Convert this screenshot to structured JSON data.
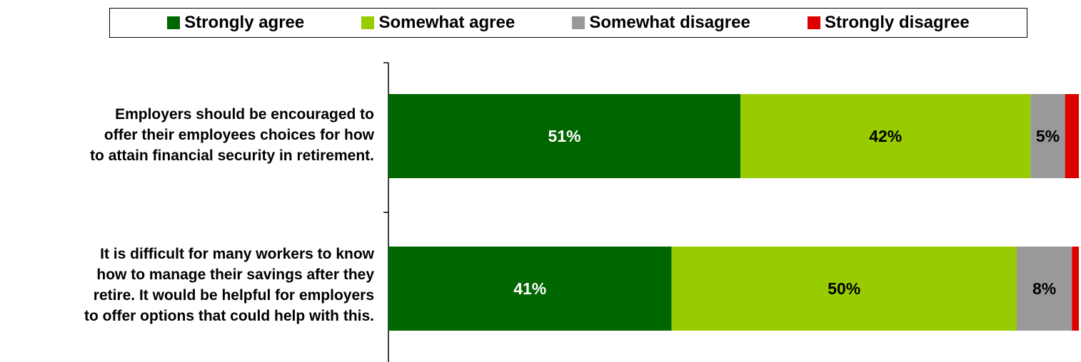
{
  "chart_data": {
    "type": "bar",
    "orientation": "horizontal",
    "stacked": true,
    "categories": [
      "Employers should be encouraged to offer their employees choices for how to attain financial security in retirement.",
      "It is difficult for many workers to know how to manage their savings after they retire.  It would be helpful for employers to offer options that could help with this."
    ],
    "category_lines": [
      [
        "Employers should be encouraged to",
        "offer their employees choices for how",
        "to attain financial security in retirement."
      ],
      [
        "It is difficult for many workers to know",
        "how to manage their savings after they",
        "retire.  It would be helpful for employers",
        "to offer options that could help with this."
      ]
    ],
    "series": [
      {
        "name": "Strongly agree",
        "color": "#006600",
        "values": [
          51,
          41
        ],
        "labels": [
          "51%",
          "41%"
        ],
        "label_color": "#ffffff"
      },
      {
        "name": "Somewhat agree",
        "color": "#99cc00",
        "values": [
          42,
          50
        ],
        "labels": [
          "42%",
          "50%"
        ],
        "label_color": "#000000"
      },
      {
        "name": "Somewhat disagree",
        "color": "#999999",
        "values": [
          5,
          8
        ],
        "labels": [
          "5%",
          "8%"
        ],
        "label_color": "#000000"
      },
      {
        "name": "Strongly disagree",
        "color": "#dd0000",
        "values": [
          2,
          1
        ],
        "labels": [
          "",
          ""
        ],
        "label_color": "#000000"
      }
    ],
    "xlim": [
      0,
      100
    ],
    "legend_position": "top",
    "grid": false
  }
}
